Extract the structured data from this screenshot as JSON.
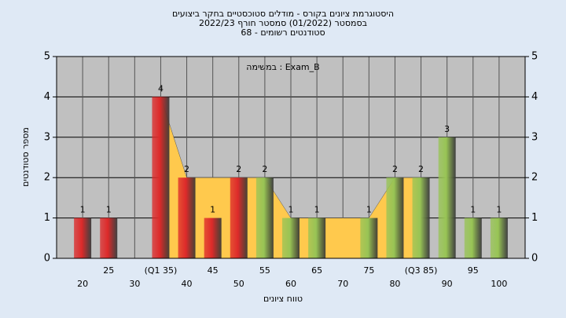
{
  "chart_data": {
    "type": "bar",
    "title": [
      "היסטוגרמת ציונים בקורס - מודלים סטוכסטיים בחקר ביצועים",
      "בסמסטר  (01/2022)  סמסטר חורף 2022/23",
      "סטודנטים רשומים - 68"
    ],
    "annotation": "במשימה : Exam_B",
    "x_label": "טווח ציונים",
    "y_label": "מספר סטודנטים",
    "x": [
      20,
      25,
      30,
      35,
      40,
      45,
      50,
      55,
      60,
      65,
      70,
      75,
      80,
      85,
      90,
      95,
      100
    ],
    "values": [
      1,
      1,
      0,
      4,
      2,
      1,
      2,
      2,
      1,
      1,
      0,
      1,
      2,
      2,
      3,
      1,
      1
    ],
    "colors": [
      "#dd2a2a",
      "#dd2a2a",
      "#dd2a2a",
      "#dd2a2a",
      "#dd2a2a",
      "#dd2a2a",
      "#dd2a2a",
      "#98c455",
      "#98c455",
      "#98c455",
      "#98c455",
      "#98c455",
      "#98c455",
      "#98c455",
      "#98c455",
      "#98c455",
      "#98c455"
    ],
    "area": {
      "color": "#ffc94d",
      "values": [
        null,
        null,
        null,
        4,
        2,
        2,
        2,
        2,
        1,
        1,
        1,
        1,
        2,
        2,
        null,
        null,
        null
      ]
    },
    "xlim": [
      15,
      105
    ],
    "xticks": [
      20,
      25,
      30,
      {
        "value": 35,
        "label": "(Q1 35)"
      },
      40,
      45,
      50,
      55,
      60,
      65,
      70,
      75,
      80,
      {
        "value": 85,
        "label": "(Q3 85)"
      },
      90,
      95,
      100
    ],
    "ylim": [
      0,
      5
    ],
    "yticks": [
      0,
      1,
      2,
      3,
      4,
      5
    ],
    "grid": true
  }
}
